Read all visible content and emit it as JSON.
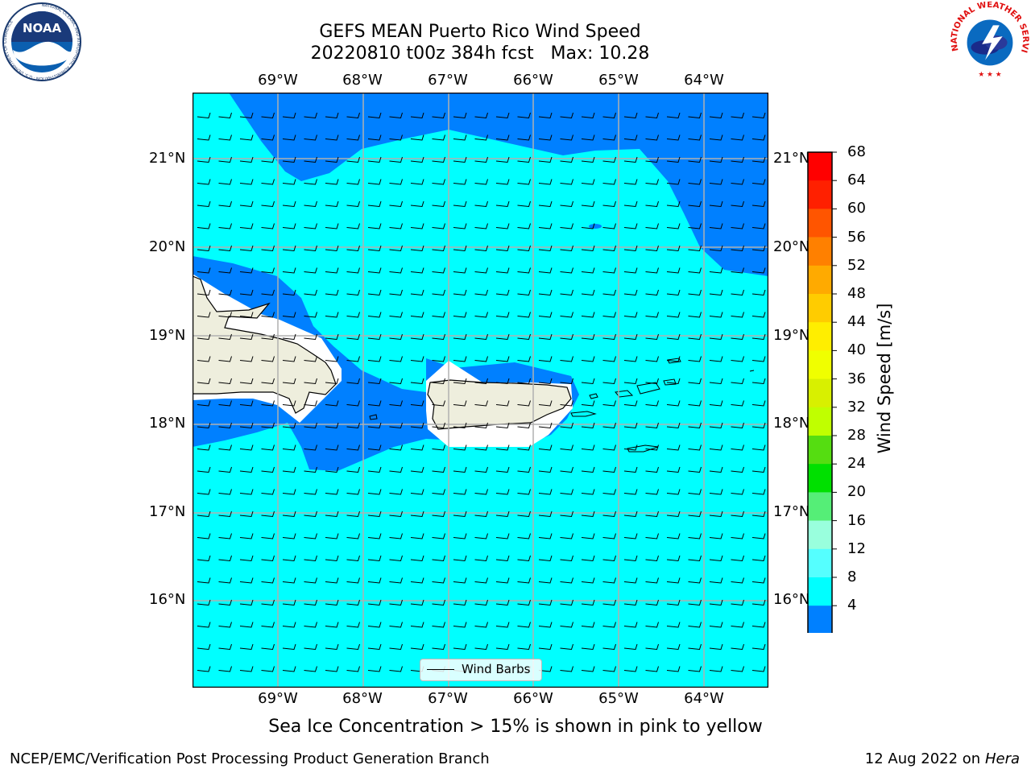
{
  "header": {
    "title_line1": "GEFS MEAN Puerto Rico Wind Speed",
    "title_line2": "20220810 t00z 384h fcst   Max: 10.28"
  },
  "logos": {
    "left": "NOAA",
    "left_ring_text": "NATIONAL OCEANIC AND ATMOSPHERIC ADMINISTRATION · U.S. DEPARTMENT OF COMMERCE",
    "right_ring_text": "NATIONAL WEATHER SERVICE"
  },
  "map": {
    "lon_labels": [
      "69°W",
      "68°W",
      "67°W",
      "66°W",
      "65°W",
      "64°W"
    ],
    "lat_labels": [
      "21°N",
      "20°N",
      "19°N",
      "18°N",
      "17°N",
      "16°N"
    ],
    "legend_label": "Wind Barbs"
  },
  "colorbar": {
    "title": "Wind Speed [m/s]",
    "ticks": [
      "68",
      "64",
      "60",
      "56",
      "52",
      "48",
      "44",
      "40",
      "36",
      "32",
      "28",
      "24",
      "20",
      "16",
      "12",
      "8",
      "4"
    ],
    "colors": [
      "#ff0000",
      "#ff2000",
      "#ff5500",
      "#ff8000",
      "#ffaa00",
      "#ffcc00",
      "#ffee00",
      "#f0ff00",
      "#d8f000",
      "#c0ff00",
      "#55dd11",
      "#00e000",
      "#55ee77",
      "#99ffdd",
      "#55ffff",
      "#00ffff",
      "#0080ff"
    ],
    "under_color": "#0000ff"
  },
  "colors": {
    "ocean_light": "#00ffff",
    "ocean_blue": "#0080ff",
    "land": "#eeeedd",
    "gridline": "#b0b0b0"
  },
  "footer": {
    "subtitle": "Sea Ice Concentration > 15% is shown in pink to yellow",
    "left": "NCEP/EMC/Verification Post Processing Product Generation Branch",
    "right_date": "12 Aug 2022 on",
    "right_host": "Hera"
  }
}
